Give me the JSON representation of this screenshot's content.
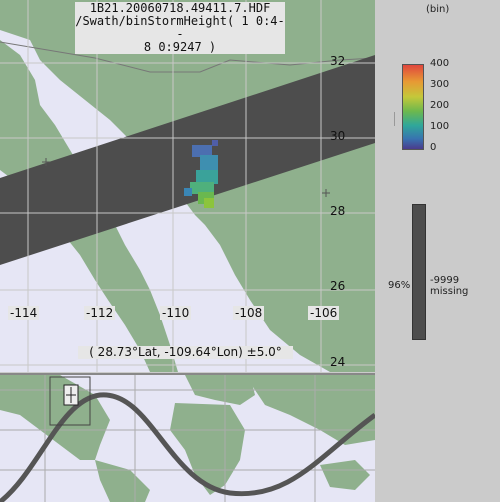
{
  "map": {
    "title_lines": [
      "1B21.20060718.49411.7.HDF",
      "/Swath/binStormHeight( 1 0:4--",
      "8 0:9247 )"
    ],
    "lon_labels": [
      "-114",
      "-112",
      "-110",
      "-108",
      "-106"
    ],
    "lat_labels": [
      "32",
      "30",
      "28",
      "26",
      "24"
    ],
    "cursor_readout": "( 28.73°Lat, -109.64°Lon) ±5.0°",
    "colors": {
      "land": "#8fb08d",
      "ocean": "#e6e6f5",
      "swath": "#4d4d4d",
      "grid": "#b8b8b8"
    }
  },
  "legend": {
    "unit": "(bin)",
    "ticks": [
      "400",
      "300",
      "200",
      "100",
      "0"
    ],
    "scale": {
      "min": 0,
      "max": 400
    },
    "missing_percent": "96%",
    "missing_value": "-9999",
    "missing_label": "missing"
  },
  "icons": {
    "view_marker": "crosshair-icon"
  }
}
